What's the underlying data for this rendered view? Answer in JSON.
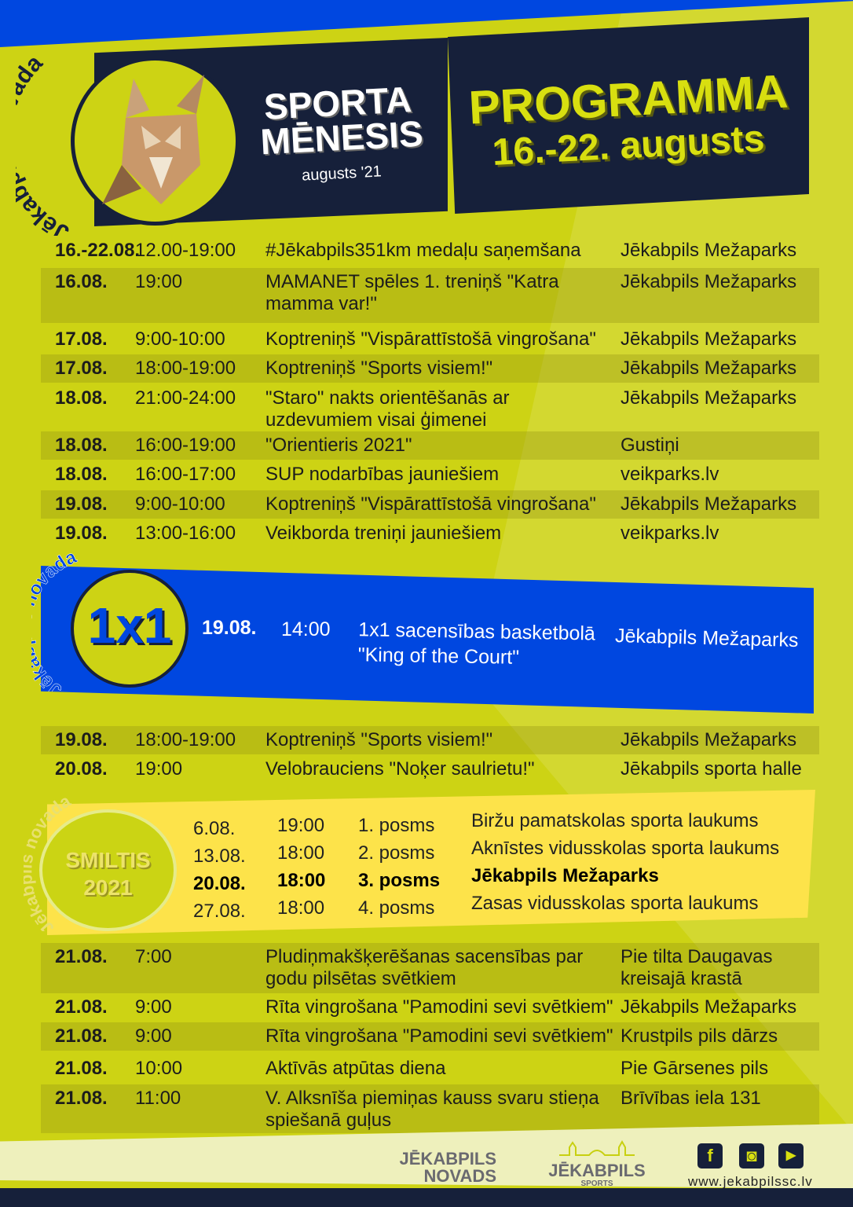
{
  "colors": {
    "lime": "#cdd314",
    "navy": "#16203a",
    "blue": "#0047e0",
    "yellow": "#fde34a"
  },
  "header": {
    "logo_arc_text": "Jēkabpils novada",
    "sporta_line1": "SPORTA",
    "sporta_line2": "MĒNESIS",
    "sporta_sub": "augusts '21",
    "programma": "PROGRAMMA",
    "dates": "16.-22. augusts"
  },
  "schedule_top": [
    {
      "date": "16.-22.08.",
      "time": "12.00-19:00",
      "event": "#Jēkabpils351km medaļu saņemšana",
      "location": "Jēkabpils Mežaparks"
    },
    {
      "date": "16.08.",
      "time": "19:00",
      "event": "MAMANET spēles 1. treniņš \"Katra mamma var!\"",
      "location": "Jēkabpils Mežaparks"
    },
    {
      "date": "17.08.",
      "time": "9:00-10:00",
      "event": "Koptreniņš \"Vispārattīstošā vingrošana\"",
      "location": "Jēkabpils Mežaparks"
    },
    {
      "date": "17.08.",
      "time": "18:00-19:00",
      "event": "Koptreniņš \"Sports visiem!\"",
      "location": "Jēkabpils Mežaparks"
    },
    {
      "date": "18.08.",
      "time": "21:00-24:00",
      "event": "\"Staro\" nakts orientēšanās ar uzdevumiem visai ģimenei",
      "location": "Jēkabpils Mežaparks"
    },
    {
      "date": "18.08.",
      "time": "16:00-19:00",
      "event": "\"Orientieris 2021\"",
      "location": "Gustiņi"
    },
    {
      "date": "18.08.",
      "time": "16:00-17:00",
      "event": "SUP nodarbības jauniešiem",
      "location": "veikparks.lv"
    },
    {
      "date": "19.08.",
      "time": "9:00-10:00",
      "event": "Koptreniņš \"Vispārattīstošā vingrošana\"",
      "location": "Jēkabpils Mežaparks"
    },
    {
      "date": "19.08.",
      "time": "13:00-16:00",
      "event": "Veikborda treniņi jauniešiem",
      "location": "veikparks.lv"
    }
  ],
  "basketball": {
    "logo_arc_text": "Jēkabpils novada",
    "logo_text": "1x1",
    "date": "19.08.",
    "time": "14:00",
    "event": "1x1 sacensības basketbolā \"King of the Court\"",
    "location": "Jēkabpils Mežaparks"
  },
  "schedule_mid": [
    {
      "date": "19.08.",
      "time": "18:00-19:00",
      "event": "Koptreniņš \"Sports visiem!\"",
      "location": "Jēkabpils Mežaparks"
    },
    {
      "date": "20.08.",
      "time": "19:00",
      "event": "Velobrauciens \"Noķer saulrietu!\"",
      "location": "Jēkabpils sporta halle"
    }
  ],
  "smiltis": {
    "logo_arc_text": "Jēkabpils novada",
    "logo_line1": "SMILTIS",
    "logo_line2": "2021",
    "rows": [
      {
        "date": "6.08.",
        "time": "19:00",
        "stage": "1. posms",
        "location": "Biržu pamatskolas sporta laukums",
        "highlight": false
      },
      {
        "date": "13.08.",
        "time": "18:00",
        "stage": "2. posms",
        "location": "Aknīstes vidusskolas sporta laukums",
        "highlight": false
      },
      {
        "date": "20.08.",
        "time": "18:00",
        "stage": "3. posms",
        "location": "Jēkabpils Mežaparks",
        "highlight": true
      },
      {
        "date": "27.08.",
        "time": "18:00",
        "stage": "4. posms",
        "location": "Zasas vidusskolas sporta laukums",
        "highlight": false
      }
    ]
  },
  "schedule_bottom": [
    {
      "date": "21.08.",
      "time": "7:00",
      "event": "Pludiņmakšķerēšanas sacensības par godu pilsētas svētkiem",
      "location": "Pie tilta Daugavas kreisajā krastā"
    },
    {
      "date": "21.08.",
      "time": "9:00",
      "event": "Rīta vingrošana \"Pamodini sevi svētkiem\"",
      "location": "Jēkabpils Mežaparks"
    },
    {
      "date": "21.08.",
      "time": "9:00",
      "event": "Rīta vingrošana \"Pamodini sevi svētkiem\"",
      "location": "Krustpils pils dārzs"
    },
    {
      "date": "21.08.",
      "time": "10:00",
      "event": "Aktīvās atpūtas diena",
      "location": "Pie Gārsenes pils"
    },
    {
      "date": "21.08.",
      "time": "11:00",
      "event": "V. Alksnīša piemiņas kauss svaru stieņa spiešanā guļus",
      "location": "Brīvības iela 131"
    }
  ],
  "footer": {
    "logo1_line1": "JĒKABPILS",
    "logo1_line2": "NOVADS",
    "logo2_line1": "JĒKABPILS",
    "logo2_line2": "SPORTS",
    "social": [
      {
        "icon": "facebook-icon",
        "glyph": "f"
      },
      {
        "icon": "instagram-icon",
        "glyph": "◙"
      },
      {
        "icon": "youtube-icon",
        "glyph": "▶"
      }
    ],
    "url": "www.jekabpilssc.lv"
  }
}
